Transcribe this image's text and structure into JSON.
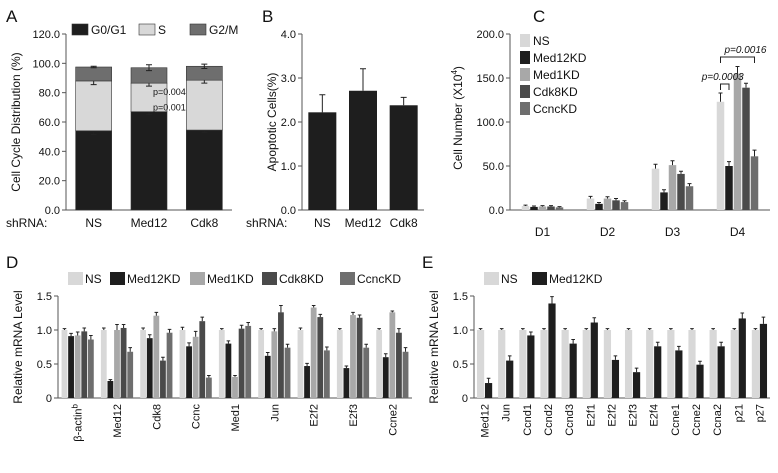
{
  "colors": {
    "light": "#d8d8d8",
    "dark": "#1e1e1e",
    "mid_light": "#a8a8a8",
    "mid_dark": "#4a4a4a",
    "medium": "#6e6e6e",
    "axis": "#555555"
  },
  "chart_data": [
    {
      "panel": "A",
      "type": "bar",
      "stacked": true,
      "ylabel": "Cell Cycle Distribution (%)",
      "xlabel": "shRNA:",
      "categories": [
        "NS",
        "Med12",
        "Cdk8"
      ],
      "ylim": [
        0,
        120
      ],
      "yticks": [
        "0.0",
        "20.0",
        "40.0",
        "60.0",
        "80.0",
        "100.0",
        "120.0"
      ],
      "legend": "top",
      "series": [
        {
          "name": "G0/G1",
          "values": [
            54,
            67,
            54.5
          ],
          "err": [
            2.5,
            2,
            1.5
          ]
        },
        {
          "name": "S",
          "values": [
            34,
            19.5,
            34
          ],
          "err": [
            2.5,
            2,
            2
          ]
        },
        {
          "name": "G2/M",
          "values": [
            9.5,
            10.5,
            9.5
          ],
          "err": [
            0.5,
            2,
            1.5
          ]
        }
      ],
      "annotations": [
        "p=0.004",
        "p=0.001"
      ]
    },
    {
      "panel": "B",
      "type": "bar",
      "ylabel": "Apoptotic Cells(%)",
      "xlabel": "shRNA:",
      "categories": [
        "NS",
        "Med12",
        "Cdk8"
      ],
      "ylim": [
        0,
        4
      ],
      "yticks": [
        "0.0",
        "1.0",
        "2.0",
        "3.0",
        "4.0"
      ],
      "values": [
        2.22,
        2.71,
        2.38
      ],
      "err": [
        0.4,
        0.5,
        0.18
      ]
    },
    {
      "panel": "C",
      "type": "bar",
      "ylabel": "Cell Number (X10",
      "ylabel_sup": "4",
      "ylabel_end": ")",
      "categories": [
        "D1",
        "D2",
        "D3",
        "D4"
      ],
      "ylim": [
        0,
        200
      ],
      "yticks": [
        "0.0",
        "50.0",
        "100.0",
        "150.0",
        "200.0"
      ],
      "legend": "top-left",
      "series": [
        {
          "name": "NS",
          "values": [
            4.5,
            13,
            47,
            123
          ],
          "err": [
            1,
            2.5,
            5,
            10
          ]
        },
        {
          "name": "Med12KD",
          "values": [
            3.5,
            7,
            20,
            50
          ],
          "err": [
            1,
            1.5,
            3,
            5
          ]
        },
        {
          "name": "Med1KD",
          "values": [
            4,
            13,
            51,
            155
          ],
          "err": [
            1,
            2,
            5,
            8
          ]
        },
        {
          "name": "Cdk8KD",
          "values": [
            4,
            11,
            41,
            139
          ],
          "err": [
            1,
            2,
            3,
            5
          ]
        },
        {
          "name": "CcncKD",
          "values": [
            3,
            9,
            27,
            61
          ],
          "err": [
            0.8,
            1.5,
            3,
            7
          ]
        }
      ],
      "annotations": [
        "p=0.0003",
        "p=0.0016"
      ]
    },
    {
      "panel": "D",
      "type": "bar",
      "ylabel": "Relative mRNA Level",
      "categories": [
        "β-actin",
        "Med12",
        "Cdk8",
        "Ccnc",
        "Med1",
        "Jun",
        "E2f2",
        "E2f3",
        "Ccne2"
      ],
      "category_superscript": "b",
      "ylim": [
        0,
        1.5
      ],
      "yticks": [
        "0",
        "0.5",
        "1.0",
        "1.5"
      ],
      "legend": "top",
      "series": [
        {
          "name": "NS",
          "values": [
            1.0,
            1.0,
            1.0,
            1.0,
            1.0,
            1.0,
            1.0,
            1.0,
            1.0
          ],
          "err": [
            0.02,
            0.03,
            0.03,
            0.04,
            0.02,
            0.02,
            0.03,
            0.02,
            0.02
          ]
        },
        {
          "name": "Med12KD",
          "values": [
            0.91,
            0.25,
            0.88,
            0.76,
            0.8,
            0.62,
            0.47,
            0.44,
            0.6
          ],
          "err": [
            0.04,
            0.02,
            0.05,
            0.05,
            0.04,
            0.05,
            0.04,
            0.03,
            0.05
          ]
        },
        {
          "name": "Med1KD",
          "values": [
            0.92,
            1.0,
            1.21,
            0.9,
            0.31,
            0.98,
            1.33,
            1.22,
            1.26
          ],
          "err": [
            0.05,
            0.08,
            0.05,
            0.08,
            0.02,
            0.04,
            0.03,
            0.04,
            0.02
          ]
        },
        {
          "name": "Cdk8KD",
          "values": [
            0.98,
            1.03,
            0.55,
            1.13,
            1.02,
            1.26,
            1.19,
            1.18,
            0.96
          ],
          "err": [
            0.05,
            0.05,
            0.05,
            0.06,
            0.05,
            0.1,
            0.04,
            0.04,
            0.06
          ]
        },
        {
          "name": "CcncKD",
          "values": [
            0.86,
            0.68,
            0.96,
            0.3,
            1.06,
            0.74,
            0.7,
            0.74,
            0.68
          ],
          "err": [
            0.06,
            0.06,
            0.05,
            0.03,
            0.05,
            0.05,
            0.05,
            0.05,
            0.06
          ]
        }
      ]
    },
    {
      "panel": "E",
      "type": "bar",
      "ylabel": "Relative mRNA Level",
      "categories": [
        "Med12",
        "Jun",
        "Ccnd1",
        "Ccnd2",
        "Ccnd3",
        "E2f1",
        "E2f2",
        "E2f3",
        "E2f4",
        "Ccne1",
        "Ccne2",
        "Ccna2",
        "p21",
        "p27"
      ],
      "ylim": [
        0,
        1.5
      ],
      "yticks": [
        "0",
        "0.5",
        "1.0",
        "1.5"
      ],
      "legend": "top-left",
      "series": [
        {
          "name": "NS",
          "values": [
            1,
            1,
            1,
            1,
            1,
            1,
            1,
            1,
            1,
            1,
            1,
            1,
            1,
            1
          ],
          "err": [
            0.02,
            0.02,
            0.02,
            0.02,
            0.02,
            0.02,
            0.02,
            0.02,
            0.02,
            0.02,
            0.02,
            0.02,
            0.02,
            0.02
          ]
        },
        {
          "name": "Med12KD",
          "values": [
            0.22,
            0.55,
            0.92,
            1.39,
            0.8,
            1.11,
            0.56,
            0.38,
            0.76,
            0.7,
            0.49,
            0.76,
            1.17,
            1.09
          ],
          "err": [
            0.07,
            0.07,
            0.05,
            0.1,
            0.06,
            0.07,
            0.06,
            0.06,
            0.06,
            0.06,
            0.05,
            0.06,
            0.08,
            0.1
          ]
        }
      ]
    }
  ],
  "panels": {
    "A": {
      "label": "A"
    },
    "B": {
      "label": "B"
    },
    "C": {
      "label": "C"
    },
    "D": {
      "label": "D"
    },
    "E": {
      "label": "E"
    }
  }
}
